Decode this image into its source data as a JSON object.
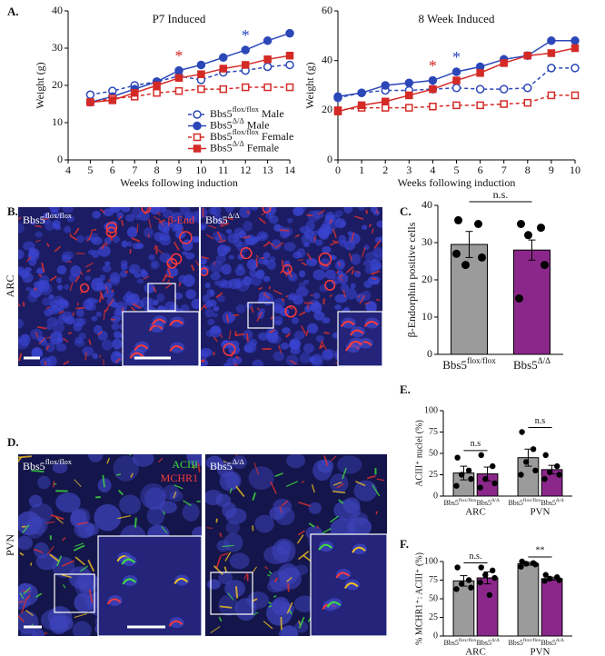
{
  "figure": {
    "panel_labels": [
      "A.",
      "B.",
      "C.",
      "D.",
      "E.",
      "F."
    ]
  },
  "images": {
    "b_row_label": "ARC",
    "b_left": "Bbs5flox/flox",
    "b_right": "Bbs5Δ/Δ",
    "b_stain": "β-End",
    "d_row_label": "PVN",
    "d_left": "Bbs5flox/flox",
    "d_right": "Bbs5Δ/Δ",
    "d_stain_1": "ACIII",
    "d_stain_2": "MCHR1"
  },
  "chart_data": [
    {
      "type": "line",
      "title": "P7 Induced",
      "x_label": "Weeks following induction",
      "y_label": "Weight (g)",
      "x": [
        5,
        6,
        7,
        8,
        9,
        10,
        11,
        12,
        13,
        14
      ],
      "xlim": [
        4,
        14
      ],
      "xticks": [
        4,
        5,
        6,
        7,
        8,
        9,
        10,
        11,
        12,
        13,
        14
      ],
      "ylim": [
        0,
        40
      ],
      "yticks": [
        0,
        10,
        20,
        30,
        40
      ],
      "legend": "lower right",
      "series": [
        {
          "name": "Bbs5flox/flox Male",
          "color": "#2b47b8",
          "marker": "circle",
          "filled": false,
          "dashed": true,
          "values": [
            17.5,
            18.5,
            20,
            21,
            22.5,
            21.5,
            23.5,
            24,
            25,
            25.5
          ]
        },
        {
          "name": "Bbs5Δ/Δ Male",
          "color": "#2b47b8",
          "marker": "circle",
          "filled": true,
          "dashed": false,
          "values": [
            15.5,
            17,
            19,
            21,
            24,
            25.5,
            27.5,
            29.5,
            32,
            34
          ]
        },
        {
          "name": "Bbs5flox/flox Female",
          "color": "#d42a26",
          "marker": "square",
          "filled": false,
          "dashed": true,
          "values": [
            15.5,
            16.5,
            17,
            18,
            18.5,
            19,
            19,
            19.5,
            19.5,
            19.5
          ]
        },
        {
          "name": "Bbs5Δ/Δ Female",
          "color": "#d42a26",
          "marker": "square",
          "filled": true,
          "dashed": false,
          "values": [
            15.5,
            16,
            18,
            20,
            22,
            23,
            24.5,
            25.5,
            27,
            28
          ]
        }
      ],
      "annotations": [
        {
          "text": "*",
          "x": 9,
          "color": "#d42a26"
        },
        {
          "text": "*",
          "x": 12,
          "color": "#2b47b8"
        }
      ]
    },
    {
      "type": "line",
      "title": "8 Week Induced",
      "x_label": "Weeks following induction",
      "y_label": "Weight (g)",
      "x": [
        0,
        1,
        2,
        3,
        4,
        5,
        6,
        7,
        8,
        9,
        10
      ],
      "xlim": [
        0,
        10
      ],
      "xticks": [
        0,
        1,
        2,
        3,
        4,
        5,
        6,
        7,
        8,
        9,
        10
      ],
      "ylim": [
        0,
        60
      ],
      "yticks": [
        0,
        20,
        40,
        60
      ],
      "series": [
        {
          "color": "#2b47b8",
          "marker": "circle",
          "filled": false,
          "dashed": true,
          "values": [
            25,
            27,
            28,
            28,
            28.5,
            29,
            28.5,
            28.5,
            29,
            37,
            37
          ]
        },
        {
          "color": "#2b47b8",
          "marker": "circle",
          "filled": true,
          "dashed": false,
          "values": [
            25.5,
            27,
            30,
            31,
            32,
            35.5,
            37.5,
            40.5,
            42,
            48,
            48
          ]
        },
        {
          "color": "#d42a26",
          "marker": "square",
          "filled": false,
          "dashed": true,
          "values": [
            20,
            21,
            21,
            21,
            21.5,
            22,
            22,
            22.5,
            23,
            26,
            26
          ]
        },
        {
          "color": "#d42a26",
          "marker": "square",
          "filled": true,
          "dashed": false,
          "values": [
            19.5,
            22,
            23.5,
            26,
            28.5,
            32,
            35,
            39,
            42,
            43,
            45
          ]
        }
      ],
      "annotations": [
        {
          "text": "*",
          "x": 4,
          "color": "#d42a26"
        },
        {
          "text": "*",
          "x": 5,
          "color": "#2b47b8"
        }
      ]
    },
    {
      "type": "bar",
      "y_label": "β-Endorphin positive cells",
      "categories": [
        "Bbs5flox/flox",
        "Bbs5Δ/Δ"
      ],
      "values": [
        29.5,
        28
      ],
      "errors": [
        3.5,
        2.7
      ],
      "points": [
        [
          36,
          35,
          24,
          26,
          27
        ],
        [
          35,
          34,
          32,
          24,
          15
        ]
      ],
      "colors": [
        "#9b9b9b",
        "#8b278b"
      ],
      "ylim": [
        0,
        40
      ],
      "yticks": [
        0,
        10,
        20,
        30,
        40
      ],
      "significance": "n.s."
    },
    {
      "type": "grouped_bar",
      "y_label": "ACIII⁺ nuclei (%)",
      "colors": [
        "#9b9b9b",
        "#8b278b"
      ],
      "ylim": [
        0,
        100
      ],
      "yticks": [
        0,
        25,
        50,
        75,
        100
      ],
      "groups": [
        {
          "name": "ARC",
          "categories": [
            "Bbs5flox/flox",
            "Bbs5Δ/Δ"
          ],
          "values": [
            27,
            26
          ],
          "errors": [
            8,
            8
          ],
          "points": [
            [
              45,
              30,
              25,
              20,
              12
            ],
            [
              48,
              35,
              20,
              15,
              10
            ]
          ],
          "significance": "n.s"
        },
        {
          "name": "PVN",
          "categories": [
            "Bbs5flox/flox",
            "Bbs5Δ/Δ"
          ],
          "values": [
            45,
            31
          ],
          "errors": [
            10,
            5
          ],
          "points": [
            [
              75,
              55,
              40,
              30,
              25
            ],
            [
              48,
              35,
              28,
              25,
              20
            ]
          ],
          "significance": "n.s"
        }
      ]
    },
    {
      "type": "grouped_bar",
      "y_label": "% MCHR1⁺: ACIII⁺ (%)",
      "colors": [
        "#9b9b9b",
        "#8b278b"
      ],
      "ylim": [
        0,
        100
      ],
      "yticks": [
        0,
        25,
        50,
        75,
        100
      ],
      "groups": [
        {
          "name": "ARC",
          "categories": [
            "Bbs5flox/flox",
            "Bbs5Δ/Δ"
          ],
          "values": [
            74,
            78
          ],
          "errors": [
            7,
            8
          ],
          "points": [
            [
              92,
              75,
              70,
              65,
              63
            ],
            [
              92,
              88,
              82,
              78,
              72,
              55
            ]
          ],
          "significance": "n.s."
        },
        {
          "name": "PVN",
          "categories": [
            "Bbs5flox/flox",
            "Bbs5Δ/Δ"
          ],
          "values": [
            97,
            77
          ],
          "errors": [
            2,
            2
          ],
          "points": [
            [
              100,
              98,
              97,
              96,
              93
            ],
            [
              82,
              79,
              77,
              75,
              74
            ]
          ],
          "significance": "**"
        }
      ]
    }
  ]
}
